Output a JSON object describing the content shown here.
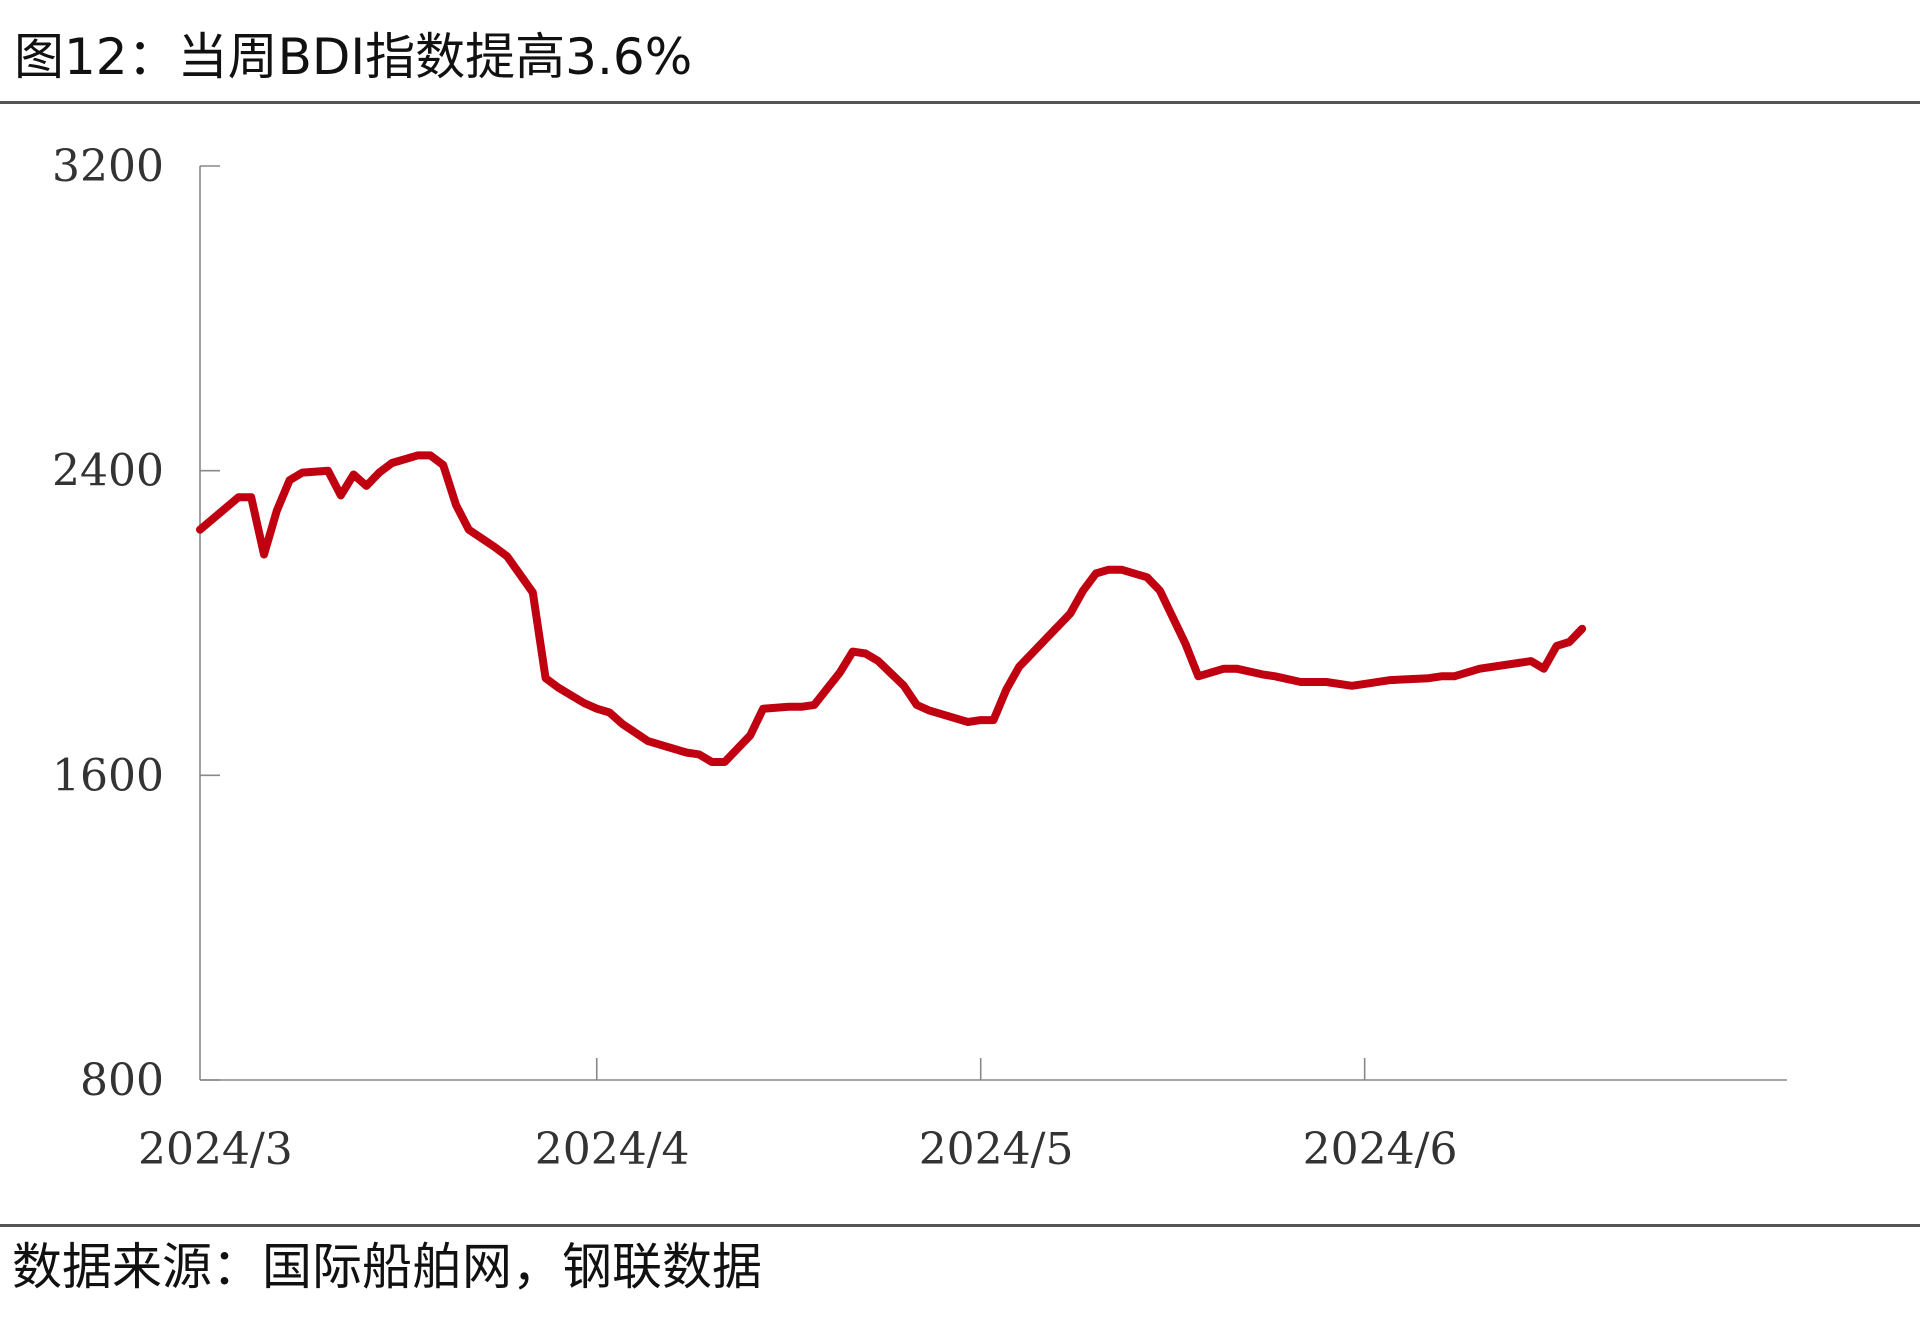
{
  "figure": {
    "title": "图12：当周BDI指数提高3.6%",
    "source": "数据来源：国际船舶网，钢联数据"
  },
  "colors": {
    "line": "#C00010",
    "axis": "#888888",
    "text": "#333333"
  },
  "chart_data": {
    "type": "line",
    "title": "",
    "xlabel": "",
    "ylabel": "",
    "ylim": [
      800,
      3200
    ],
    "yticks": [
      800,
      1600,
      2400,
      3200
    ],
    "xlim": [
      "2024-03-01",
      "2024-07-03"
    ],
    "xticks": [
      {
        "date": "2024-04-01",
        "label": "2024/4"
      },
      {
        "date": "2024-05-01",
        "label": "2024/5"
      },
      {
        "date": "2024-05-31",
        "label": "2024/6"
      }
    ],
    "xticklabels_extra": [
      {
        "date": "2024-03-01",
        "label": "2024/3"
      }
    ],
    "grid": false,
    "legend": "none",
    "series": [
      {
        "x": [
          "2024-03-01",
          "2024-03-04",
          "2024-03-05",
          "2024-03-06",
          "2024-03-07",
          "2024-03-08",
          "2024-03-09",
          "2024-03-11",
          "2024-03-12",
          "2024-03-13",
          "2024-03-14",
          "2024-03-15",
          "2024-03-16",
          "2024-03-18",
          "2024-03-19",
          "2024-03-20",
          "2024-03-21",
          "2024-03-22",
          "2024-03-24",
          "2024-03-25",
          "2024-03-27",
          "2024-03-28",
          "2024-03-29",
          "2024-03-31",
          "2024-04-01",
          "2024-04-02",
          "2024-04-03",
          "2024-04-05",
          "2024-04-08",
          "2024-04-09",
          "2024-04-10",
          "2024-04-11",
          "2024-04-13",
          "2024-04-14",
          "2024-04-16",
          "2024-04-17",
          "2024-04-18",
          "2024-04-20",
          "2024-04-21",
          "2024-04-22",
          "2024-04-23",
          "2024-04-25",
          "2024-04-26",
          "2024-04-27",
          "2024-04-29",
          "2024-04-30",
          "2024-05-01",
          "2024-05-02",
          "2024-05-03",
          "2024-05-04",
          "2024-05-06",
          "2024-05-08",
          "2024-05-09",
          "2024-05-10",
          "2024-05-11",
          "2024-05-12",
          "2024-05-14",
          "2024-05-15",
          "2024-05-17",
          "2024-05-18",
          "2024-05-20",
          "2024-05-21",
          "2024-05-23",
          "2024-05-24",
          "2024-05-26",
          "2024-05-28",
          "2024-05-30",
          "2024-05-31",
          "2024-06-02",
          "2024-06-05",
          "2024-06-06",
          "2024-06-07",
          "2024-06-09",
          "2024-06-12",
          "2024-06-13",
          "2024-06-14",
          "2024-06-15",
          "2024-06-16",
          "2024-06-17"
        ],
        "values": [
          2245,
          2330,
          2330,
          2180,
          2295,
          2375,
          2395,
          2400,
          2335,
          2390,
          2360,
          2395,
          2420,
          2440,
          2440,
          2415,
          2310,
          2245,
          2200,
          2175,
          2080,
          1855,
          1830,
          1790,
          1775,
          1765,
          1735,
          1690,
          1660,
          1655,
          1635,
          1635,
          1705,
          1775,
          1780,
          1780,
          1785,
          1870,
          1925,
          1920,
          1900,
          1835,
          1785,
          1770,
          1750,
          1740,
          1745,
          1745,
          1825,
          1885,
          1955,
          2025,
          2085,
          2130,
          2140,
          2140,
          2120,
          2085,
          1945,
          1860,
          1880,
          1880,
          1865,
          1860,
          1845,
          1845,
          1835,
          1840,
          1850,
          1855,
          1860,
          1860,
          1880,
          1895,
          1900,
          1880,
          1940,
          1950,
          1985
        ]
      }
    ]
  }
}
